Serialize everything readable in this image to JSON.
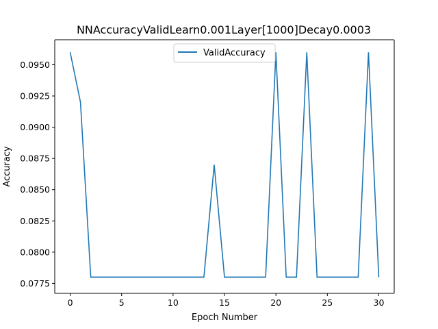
{
  "chart_data": {
    "type": "line",
    "title": "NNAccuracyValidLearn0.001Layer[1000]Decay0.0003",
    "xlabel": "Epoch Number",
    "ylabel": "Accuracy",
    "xlim": [
      -1.5,
      31.5
    ],
    "ylim": [
      0.0767,
      0.097
    ],
    "xticks": [
      0,
      5,
      10,
      15,
      20,
      25,
      30
    ],
    "xtick_labels": [
      "0",
      "5",
      "10",
      "15",
      "20",
      "25",
      "30"
    ],
    "yticks": [
      0.0775,
      0.08,
      0.0825,
      0.085,
      0.0875,
      0.09,
      0.0925,
      0.095
    ],
    "ytick_labels": [
      "0.0775",
      "0.0800",
      "0.0825",
      "0.0850",
      "0.0875",
      "0.0900",
      "0.0925",
      "0.0950"
    ],
    "grid": false,
    "legend_position": "upper center",
    "x": [
      0,
      1,
      2,
      3,
      4,
      5,
      6,
      7,
      8,
      9,
      10,
      11,
      12,
      13,
      14,
      15,
      16,
      17,
      18,
      19,
      20,
      21,
      22,
      23,
      24,
      25,
      26,
      27,
      28,
      29,
      30
    ],
    "series": [
      {
        "name": "ValidAccuracy",
        "color": "#1f77b4",
        "values": [
          0.096,
          0.092,
          0.078,
          0.078,
          0.078,
          0.078,
          0.078,
          0.078,
          0.078,
          0.078,
          0.078,
          0.078,
          0.078,
          0.078,
          0.087,
          0.078,
          0.078,
          0.078,
          0.078,
          0.078,
          0.096,
          0.078,
          0.078,
          0.096,
          0.078,
          0.078,
          0.078,
          0.078,
          0.078,
          0.096,
          0.078
        ]
      }
    ]
  }
}
